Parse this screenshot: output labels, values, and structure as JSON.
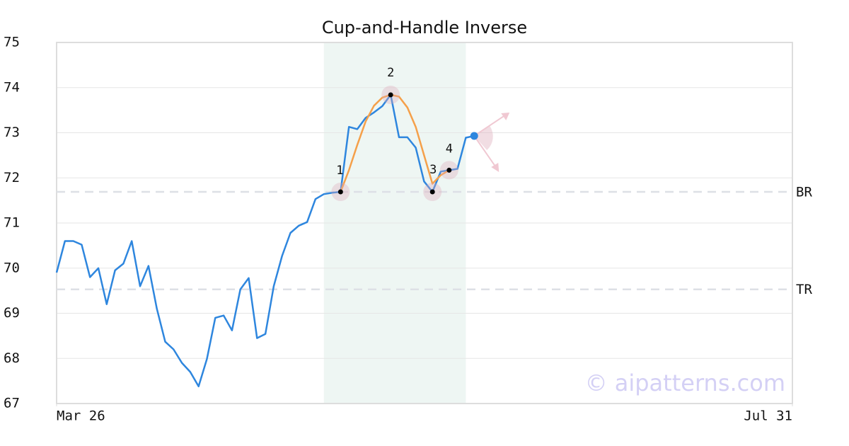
{
  "chart_data": {
    "type": "line",
    "title": "Cup-and-Handle Inverse",
    "x": [
      0,
      1,
      2,
      3,
      4,
      5,
      6,
      7,
      8,
      9,
      10,
      11,
      12,
      13,
      14,
      15,
      16,
      17,
      18,
      19,
      20,
      21,
      22,
      23,
      24,
      25,
      26,
      27,
      28,
      29,
      30,
      31,
      32,
      33,
      34,
      35,
      36,
      37,
      38,
      39,
      40,
      41,
      42,
      43,
      44,
      45,
      46,
      47,
      48,
      49,
      50
    ],
    "values": [
      69.9,
      70.6,
      70.6,
      70.52,
      69.8,
      70.0,
      69.2,
      69.95,
      70.1,
      70.6,
      69.6,
      70.05,
      69.1,
      68.37,
      68.2,
      67.9,
      67.7,
      67.38,
      67.99,
      68.9,
      68.95,
      68.62,
      69.53,
      69.78,
      68.45,
      68.54,
      69.6,
      70.27,
      70.78,
      70.94,
      71.02,
      71.53,
      71.64,
      71.67,
      71.69,
      73.13,
      73.08,
      73.33,
      73.45,
      73.59,
      73.84,
      72.9,
      72.9,
      72.67,
      71.92,
      71.69,
      72.14,
      72.17,
      72.2,
      72.89,
      72.93
    ],
    "color": "#2e86de",
    "xlim": [
      0,
      88.1
    ],
    "xticks": [
      {
        "value": 0,
        "label": "Mar 26"
      },
      {
        "value": 88.1,
        "label": "Jul 31"
      }
    ],
    "ylim": [
      67,
      75
    ],
    "yticks": [
      67,
      68,
      69,
      70,
      71,
      72,
      73,
      74,
      75
    ],
    "grid": true,
    "shaded_region": [
      32,
      49
    ],
    "fit": {
      "x": [
        34,
        35,
        36,
        37,
        38,
        39,
        40,
        41,
        42,
        43,
        44,
        45,
        46,
        47
      ],
      "values": [
        71.69,
        72.17,
        72.73,
        73.25,
        73.6,
        73.78,
        73.84,
        73.8,
        73.56,
        73.13,
        72.5,
        71.87,
        72.06,
        72.17
      ],
      "color": "#f5a04a"
    },
    "pattern_points": [
      {
        "label": "1",
        "x": 34,
        "y": 71.69
      },
      {
        "label": "2",
        "x": 40,
        "y": 73.84
      },
      {
        "label": "3",
        "x": 45,
        "y": 71.69
      },
      {
        "label": "4",
        "x": 47,
        "y": 72.17
      }
    ],
    "hlines": [
      {
        "label": "BR",
        "value": 71.69
      },
      {
        "label": "TR",
        "value": 69.53
      }
    ],
    "watermark": "© aipatterns.com"
  }
}
